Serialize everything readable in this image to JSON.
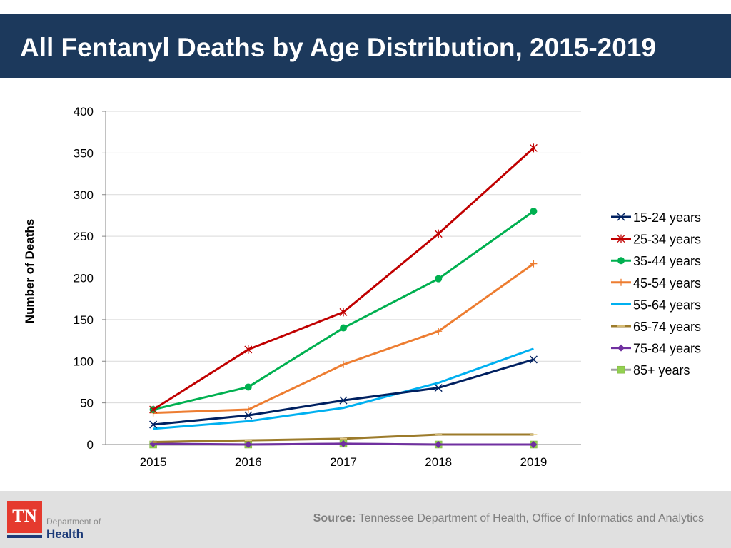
{
  "header": {
    "title": "All Fentanyl Deaths by Age Distribution, 2015-2019"
  },
  "chart_data": {
    "type": "line",
    "title": "",
    "xlabel": "",
    "ylabel": "Number of Deaths",
    "categories": [
      "2015",
      "2016",
      "2017",
      "2018",
      "2019"
    ],
    "ylim": [
      0,
      400
    ],
    "yticks": [
      "0",
      "50",
      "100",
      "150",
      "200",
      "250",
      "300",
      "350",
      "400"
    ],
    "grid": true,
    "legend_position": "right",
    "series": [
      {
        "name": "15-24 years",
        "color": "#002060",
        "marker": "x",
        "values": [
          24,
          35,
          53,
          68,
          102
        ]
      },
      {
        "name": "25-34 years",
        "color": "#c00000",
        "marker": "star",
        "values": [
          42,
          114,
          159,
          253,
          356
        ]
      },
      {
        "name": "35-44 years",
        "color": "#00b050",
        "marker": "circle",
        "values": [
          42,
          69,
          140,
          199,
          280
        ]
      },
      {
        "name": "45-54 years",
        "color": "#ed7d31",
        "marker": "plus",
        "values": [
          38,
          42,
          96,
          136,
          217
        ]
      },
      {
        "name": "55-64 years",
        "color": "#00b0f0",
        "marker": "none",
        "values": [
          19,
          28,
          44,
          74,
          115
        ]
      },
      {
        "name": "65-74 years",
        "color": "#9c7b2b",
        "marker": "dash",
        "values": [
          3,
          5,
          7,
          12,
          12
        ]
      },
      {
        "name": "75-84 years",
        "color": "#7030a0",
        "marker": "diamond",
        "values": [
          1,
          0,
          1,
          0,
          0
        ]
      },
      {
        "name": "85+ years",
        "color": "#a0a0a0",
        "marker_color": "#92d050",
        "marker": "square",
        "values": [
          0,
          0,
          1,
          0,
          0
        ]
      }
    ]
  },
  "footer": {
    "source_label": "Source:",
    "source_text": "Tennessee Department of Health, Office of Informatics and Analytics",
    "logo": {
      "tn": "TN",
      "dept": "Department of",
      "health": "Health"
    }
  }
}
